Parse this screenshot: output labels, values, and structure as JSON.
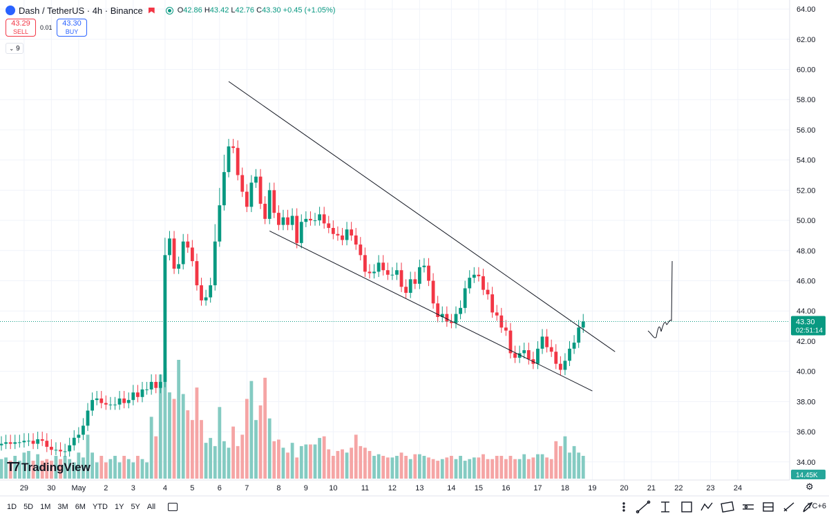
{
  "header": {
    "symbol": "Dash / TetherUS · 4h · Binance",
    "open_label": "O",
    "open": "42.86",
    "high_label": "H",
    "high": "43.42",
    "low_label": "L",
    "low": "42.76",
    "close_label": "C",
    "close": "43.30",
    "change": "+0.45 (+1.05%)"
  },
  "trade": {
    "sell_price": "43.29",
    "sell_label": "SELL",
    "spread": "0.01",
    "buy_price": "43.30",
    "buy_label": "BUY"
  },
  "indicators_count": "9",
  "watermark": "TradingView",
  "timeframes": [
    "1D",
    "5D",
    "1M",
    "3M",
    "6M",
    "YTD",
    "1Y",
    "5Y",
    "All"
  ],
  "timezone": "TC+6",
  "icons": {
    "flag": "flag-icon",
    "calendar": "calendar-icon",
    "gear": "gear-icon",
    "tools": [
      "brush-icon",
      "trend-line-icon",
      "vertical-line-icon",
      "rectangle-icon",
      "polyline-icon",
      "ruler-icon",
      "long-position-icon",
      "long-position-alt-icon",
      "measure-icon",
      "pen-icon"
    ]
  },
  "colors": {
    "up": "#089981",
    "down": "#f23645",
    "vol_up": "#84cbc2",
    "vol_down": "#f5a5a5",
    "price_label": "#089981",
    "volume_label": "#26a69a"
  },
  "chart_data": {
    "type": "candlestick",
    "title": "Dash / TetherUS · 4h · Binance",
    "y_ticks": [
      34,
      36,
      38,
      40,
      42,
      44,
      46,
      48,
      50,
      52,
      54,
      56,
      58,
      60,
      62,
      64
    ],
    "ylim": [
      32.8,
      64.6
    ],
    "x_ticks": [
      {
        "label": "29",
        "bar": 5
      },
      {
        "label": "30",
        "bar": 11
      },
      {
        "label": "May",
        "bar": 17
      },
      {
        "label": "2",
        "bar": 23
      },
      {
        "label": "3",
        "bar": 29
      },
      {
        "label": "4",
        "bar": 36
      },
      {
        "label": "5",
        "bar": 42
      },
      {
        "label": "6",
        "bar": 48
      },
      {
        "label": "7",
        "bar": 54
      },
      {
        "label": "8",
        "bar": 61
      },
      {
        "label": "9",
        "bar": 67
      },
      {
        "label": "10",
        "bar": 73
      },
      {
        "label": "11",
        "bar": 80
      },
      {
        "label": "12",
        "bar": 86
      },
      {
        "label": "13",
        "bar": 92
      },
      {
        "label": "14",
        "bar": 99
      },
      {
        "label": "15",
        "bar": 105
      },
      {
        "label": "16",
        "bar": 111
      },
      {
        "label": "17",
        "bar": 118
      },
      {
        "label": "18",
        "bar": 124
      },
      {
        "label": "19",
        "bar": 130
      },
      {
        "label": "20",
        "bar": 137
      },
      {
        "label": "21",
        "bar": 143
      },
      {
        "label": "22",
        "bar": 149
      },
      {
        "label": "23",
        "bar": 156
      },
      {
        "label": "24",
        "bar": 162
      }
    ],
    "last_price": {
      "value": 43.3,
      "label": "43.30",
      "countdown": "02:51:14"
    },
    "volume_label": "14.45K",
    "closes": [
      35.2,
      35.3,
      35.2,
      35.3,
      35.3,
      35.4,
      35.4,
      35.2,
      35.5,
      35.4,
      35.0,
      34.8,
      34.8,
      34.7,
      34.7,
      35.1,
      35.6,
      35.8,
      36.4,
      37.4,
      38.1,
      38.2,
      37.9,
      37.8,
      37.8,
      37.8,
      38.2,
      37.9,
      38.1,
      38.6,
      38.3,
      38.8,
      38.8,
      39.3,
      38.9,
      39.3,
      47.7,
      48.8,
      46.8,
      47.1,
      48.6,
      48.2,
      47.3,
      45.7,
      44.7,
      44.9,
      45.7,
      48.6,
      51.0,
      53.2,
      54.9,
      54.8,
      53.0,
      51.9,
      50.9,
      52.5,
      52.9,
      51.1,
      50.1,
      52.0,
      50.5,
      49.7,
      50.2,
      49.7,
      50.3,
      48.5,
      49.9,
      50.1,
      50.0,
      50.0,
      50.4,
      49.8,
      49.5,
      49.1,
      49.0,
      48.7,
      49.4,
      49.0,
      48.4,
      47.7,
      46.6,
      46.5,
      46.6,
      47.2,
      46.7,
      46.4,
      46.4,
      46.7,
      45.6,
      45.2,
      46.1,
      45.8,
      46.9,
      47.0,
      46.0,
      44.5,
      43.6,
      43.8,
      43.3,
      43.2,
      43.8,
      44.2,
      45.5,
      46.2,
      46.4,
      46.3,
      45.4,
      45.1,
      43.9,
      43.7,
      42.9,
      42.7,
      41.2,
      40.9,
      41.2,
      41.4,
      40.8,
      40.5,
      41.5,
      42.3,
      41.6,
      41.3,
      40.5,
      40.1,
      40.7,
      41.5,
      41.9,
      42.9,
      43.3
    ],
    "volumes": [
      1.2,
      1.3,
      1.1,
      1.4,
      1.1,
      1.6,
      1.7,
      1.1,
      1.5,
      1.1,
      1.2,
      1.1,
      1.4,
      1.2,
      1.4,
      1.2,
      1.0,
      1.6,
      1.3,
      2.7,
      1.6,
      1.0,
      1.4,
      1.0,
      1.2,
      1.4,
      1.0,
      1.4,
      1.2,
      1.0,
      1.4,
      1.2,
      1.0,
      3.8,
      2.6,
      6.4,
      6.8,
      5.3,
      4.9,
      7.3,
      5.2,
      4.2,
      3.6,
      5.6,
      3.6,
      2.2,
      2.5,
      2.0,
      4.4,
      2.3,
      1.9,
      3.2,
      2.0,
      2.7,
      4.9,
      6.0,
      3.6,
      4.5,
      6.2,
      3.7,
      2.3,
      2.4,
      1.9,
      1.6,
      2.2,
      1.3,
      2.0,
      2.1,
      2.1,
      2.1,
      2.5,
      2.6,
      1.8,
      1.4,
      1.7,
      1.8,
      1.6,
      1.9,
      2.7,
      2.0,
      1.9,
      1.7,
      1.4,
      1.5,
      1.4,
      1.3,
      1.3,
      1.4,
      1.6,
      1.4,
      1.2,
      1.5,
      1.5,
      1.4,
      1.3,
      1.2,
      1.1,
      1.2,
      1.3,
      1.4,
      1.2,
      1.4,
      1.1,
      1.2,
      1.3,
      1.3,
      1.5,
      1.2,
      1.2,
      1.4,
      1.4,
      1.2,
      1.4,
      1.2,
      1.2,
      1.5,
      1.2,
      1.3,
      1.5,
      1.5,
      1.3,
      1.2,
      2.3,
      2.0,
      2.6,
      1.6,
      2.0,
      1.6,
      1.4
    ],
    "pattern_lines": [
      {
        "from": {
          "bar": 50,
          "value": 59.2
        },
        "to": {
          "bar": 135,
          "value": 41.3
        }
      },
      {
        "from": {
          "bar": 59,
          "value": 49.3
        },
        "to": {
          "bar": 130,
          "value": 38.7
        }
      }
    ]
  }
}
